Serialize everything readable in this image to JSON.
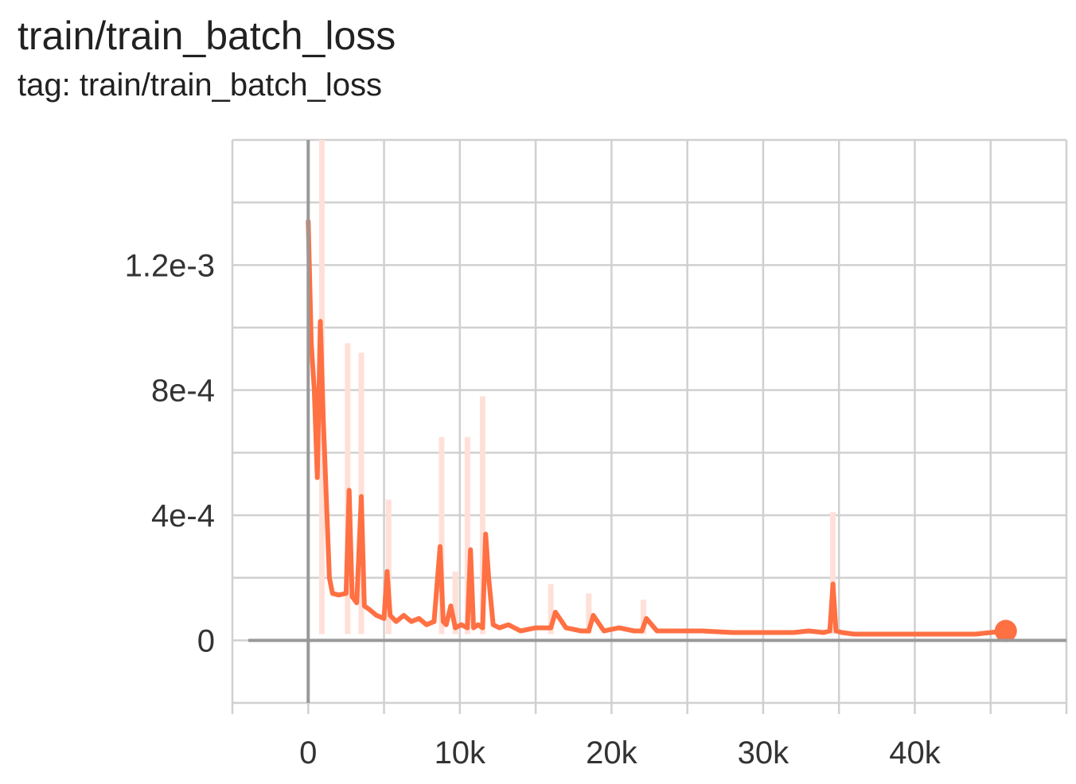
{
  "header": {
    "title": "train/train_batch_loss",
    "subtitle": "tag: train/train_batch_loss"
  },
  "chart_data": {
    "type": "line",
    "title": "train/train_batch_loss",
    "subtitle": "tag: train/train_batch_loss",
    "xlabel": "",
    "ylabel": "",
    "xlim": [
      -5000,
      50000
    ],
    "ylim": [
      -0.0002,
      0.0016
    ],
    "x_ticks": [
      0,
      10000,
      20000,
      30000,
      40000
    ],
    "x_tick_labels": [
      "0",
      "10k",
      "20k",
      "30k",
      "40k"
    ],
    "y_ticks": [
      0,
      0.0004,
      0.0008,
      0.0012
    ],
    "y_tick_labels": [
      "0",
      "4e-4",
      "8e-4",
      "1.2e-3"
    ],
    "grid": true,
    "colors": {
      "line": "#ff7043",
      "raw": "#ffe0d8",
      "axis": "#999999",
      "grid": "#d0d0d0"
    },
    "series": [
      {
        "kind": "smoothed",
        "x": [
          0,
          200,
          400,
          600,
          800,
          1000,
          1200,
          1400,
          1600,
          2000,
          2500,
          2700,
          2900,
          3200,
          3500,
          3700,
          4000,
          4500,
          5000,
          5200,
          5400,
          5800,
          6300,
          6800,
          7300,
          7800,
          8300,
          8700,
          8900,
          9100,
          9400,
          9700,
          10100,
          10500,
          10700,
          10900,
          11200,
          11500,
          11700,
          11900,
          12200,
          12600,
          13200,
          14000,
          15000,
          16000,
          16300,
          17000,
          18000,
          18500,
          18800,
          19500,
          20500,
          21500,
          22000,
          22300,
          23000,
          24000,
          26000,
          28000,
          30000,
          32000,
          33000,
          34000,
          34400,
          34600,
          34800,
          35200,
          36000,
          38000,
          40000,
          42000,
          44000,
          46000
        ],
        "y": [
          0.00134,
          0.00095,
          0.0008,
          0.00052,
          0.00102,
          0.0007,
          0.00045,
          0.0002,
          0.00015,
          0.000145,
          0.00015,
          0.00048,
          0.00014,
          0.00012,
          0.00046,
          0.00011,
          0.0001,
          8e-05,
          7e-05,
          0.00022,
          8e-05,
          6e-05,
          8e-05,
          6e-05,
          7e-05,
          5e-05,
          6e-05,
          0.0003,
          6e-05,
          5e-05,
          0.00011,
          4e-05,
          5e-05,
          4e-05,
          0.00029,
          4e-05,
          5e-05,
          4e-05,
          0.00034,
          0.0002,
          5e-05,
          4e-05,
          5e-05,
          3e-05,
          4e-05,
          4e-05,
          9e-05,
          4e-05,
          3e-05,
          3e-05,
          8e-05,
          3e-05,
          4e-05,
          3e-05,
          3e-05,
          7e-05,
          3e-05,
          3e-05,
          3e-05,
          2.5e-05,
          2.5e-05,
          2.5e-05,
          3e-05,
          2.5e-05,
          3e-05,
          0.00018,
          3e-05,
          2.5e-05,
          2e-05,
          2e-05,
          2e-05,
          2e-05,
          2e-05,
          3e-05
        ]
      },
      {
        "kind": "raw",
        "x": [
          900,
          2600,
          3500,
          5300,
          8800,
          10500,
          11500,
          9700,
          16000,
          18500,
          22100,
          34600
        ],
        "y": [
          0.0016,
          0.00095,
          0.00092,
          0.00045,
          0.00065,
          0.00065,
          0.00078,
          0.00022,
          0.00018,
          0.00015,
          0.00013,
          0.00041
        ]
      }
    ]
  }
}
